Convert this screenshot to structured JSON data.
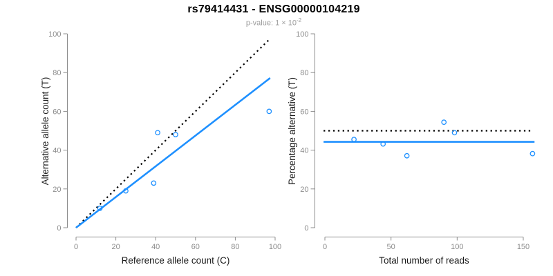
{
  "title": "rs79414431 - ENSG00000104219",
  "subtitle": {
    "base": "p-value: 1 × 10",
    "exponent": "-2"
  },
  "colors": {
    "accent_blue": "#1E90FF",
    "dotted_black": "#000000",
    "axis": "#8C8C8C",
    "tick_label": "#8C8C8C",
    "axis_title": "#1A1A1A",
    "title": "#000000",
    "subtitle": "#9B9B9B",
    "background": "#FFFFFF"
  },
  "chart_data": [
    {
      "type": "scatter",
      "name": "allele-counts",
      "xlabel": "Reference allele count (C)",
      "ylabel": "Alternative allele count (T)",
      "xlim": [
        0,
        100
      ],
      "ylim": [
        0,
        100
      ],
      "xticks": [
        0,
        20,
        40,
        60,
        80,
        100
      ],
      "yticks": [
        0,
        20,
        40,
        60,
        80,
        100
      ],
      "grid": false,
      "legend": "none",
      "point_color": "#1E90FF",
      "points": [
        [
          12,
          10
        ],
        [
          25,
          19
        ],
        [
          39,
          23
        ],
        [
          41,
          49
        ],
        [
          50,
          48
        ],
        [
          97,
          60
        ]
      ],
      "lines": [
        {
          "name": "identity-line",
          "desc": "y = x",
          "style": "dotted",
          "color": "#000000",
          "x1": 0,
          "y1": 0,
          "x2": 97,
          "y2": 97
        },
        {
          "name": "regression-line",
          "desc": "slope 0.79 through origin",
          "style": "solid",
          "color": "#1E90FF",
          "x1": 0,
          "y1": 0,
          "x2": 97.5,
          "y2": 77.2
        }
      ]
    },
    {
      "type": "scatter",
      "name": "percentage-vs-reads",
      "xlabel": "Total number of reads",
      "ylabel": "Percentage alternative (T)",
      "xlim": [
        0,
        150
      ],
      "ylim": [
        0,
        100
      ],
      "xticks": [
        0,
        50,
        100,
        150
      ],
      "yticks": [
        0,
        20,
        40,
        60,
        80,
        100
      ],
      "grid": false,
      "legend": "none",
      "point_color": "#1E90FF",
      "points": [
        [
          22,
          45.5
        ],
        [
          44,
          43.2
        ],
        [
          62,
          37.1
        ],
        [
          90,
          54.4
        ],
        [
          98,
          49.0
        ],
        [
          157,
          38.2
        ]
      ],
      "lines": [
        {
          "name": "expected-50pct-line",
          "desc": "y = 50",
          "style": "dotted",
          "color": "#000000",
          "x1": -1,
          "y1": 50,
          "x2": 157,
          "y2": 50
        },
        {
          "name": "mean-percentage-line",
          "desc": "y = 44.3",
          "style": "solid",
          "color": "#1E90FF",
          "x1": -1,
          "y1": 44.3,
          "x2": 158.5,
          "y2": 44.3
        }
      ]
    }
  ]
}
